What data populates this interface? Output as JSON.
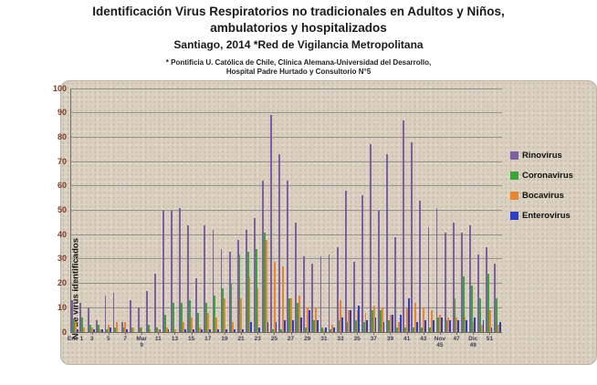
{
  "title": {
    "line1": "Identificación Virus Respiratorios no tradicionales en Adultos y Niños,",
    "line2": "ambulatorios y hospitalizados",
    "line3": "Santiago, 2014 *Red de Vigilancia Metropolitana",
    "footnote1": "* Pontificia U. Católica de Chile, Clínica Alemana-Universidad del Desarrollo,",
    "footnote2": "Hospital Padre Hurtado y Consultorio N°5"
  },
  "chart_data": {
    "type": "bar",
    "ylabel": "N° de virus identificados",
    "ylim": [
      0,
      100
    ],
    "ytick_step": 10,
    "grid": true,
    "legend_position": "right",
    "background": "#d9d0bf",
    "categories": [
      1,
      2,
      3,
      4,
      5,
      6,
      7,
      8,
      9,
      10,
      11,
      12,
      13,
      14,
      15,
      16,
      17,
      18,
      19,
      20,
      21,
      22,
      23,
      24,
      25,
      26,
      27,
      28,
      29,
      30,
      31,
      32,
      33,
      34,
      35,
      36,
      37,
      38,
      39,
      40,
      41,
      42,
      43,
      44,
      45,
      46,
      47,
      48,
      49,
      50,
      51,
      52
    ],
    "x_tick_labels": [
      {
        "week": 1,
        "text": "Ene 1"
      },
      {
        "week": 3,
        "text": "3"
      },
      {
        "week": 5,
        "text": "5"
      },
      {
        "week": 7,
        "text": "7"
      },
      {
        "week": 9,
        "text": "Mar|9"
      },
      {
        "week": 11,
        "text": "11"
      },
      {
        "week": 13,
        "text": "13"
      },
      {
        "week": 15,
        "text": "15"
      },
      {
        "week": 17,
        "text": "17"
      },
      {
        "week": 19,
        "text": "19"
      },
      {
        "week": 21,
        "text": "21"
      },
      {
        "week": 23,
        "text": "23"
      },
      {
        "week": 25,
        "text": "25"
      },
      {
        "week": 27,
        "text": "27"
      },
      {
        "week": 29,
        "text": "29"
      },
      {
        "week": 31,
        "text": "31"
      },
      {
        "week": 33,
        "text": "33"
      },
      {
        "week": 35,
        "text": "35"
      },
      {
        "week": 37,
        "text": "37"
      },
      {
        "week": 39,
        "text": "39"
      },
      {
        "week": 41,
        "text": "41"
      },
      {
        "week": 43,
        "text": "43"
      },
      {
        "week": 45,
        "text": "Nov|45"
      },
      {
        "week": 47,
        "text": "47"
      },
      {
        "week": 49,
        "text": "Dic|49"
      },
      {
        "week": 51,
        "text": "51"
      }
    ],
    "series": [
      {
        "name": "Rinovirus",
        "color": "#7d60a3",
        "values": [
          13,
          12,
          10,
          5,
          15,
          16,
          4,
          13,
          10,
          17,
          24,
          50,
          50,
          51,
          44,
          22,
          44,
          42,
          34,
          33,
          38,
          42,
          47,
          62,
          89,
          73,
          62,
          45,
          31,
          28,
          31,
          32,
          35,
          58,
          29,
          56,
          77,
          50,
          73,
          39,
          87,
          78,
          54,
          43,
          51,
          41,
          45,
          41,
          44,
          32,
          35,
          28
        ]
      },
      {
        "name": "Coronavirus",
        "color": "#3aa33a",
        "values": [
          5,
          6,
          3,
          3,
          1,
          2,
          2,
          2,
          2,
          3,
          2,
          7,
          12,
          12,
          13,
          8,
          12,
          15,
          18,
          20,
          32,
          33,
          34,
          41,
          1,
          1,
          14,
          12,
          2,
          5,
          2,
          1,
          5,
          4,
          5,
          4,
          9,
          9,
          5,
          2,
          2,
          2,
          2,
          2,
          6,
          5,
          14,
          23,
          19,
          14,
          24,
          14
        ]
      },
      {
        "name": "Bocavirus",
        "color": "#e8852f",
        "values": [
          4,
          2,
          2,
          1,
          3,
          4,
          4,
          2,
          2,
          1,
          1,
          2,
          1,
          4,
          6,
          2,
          8,
          6,
          14,
          4,
          14,
          23,
          18,
          38,
          29,
          27,
          14,
          15,
          10,
          10,
          1,
          3,
          13,
          9,
          9,
          8,
          11,
          10,
          7,
          4,
          10,
          12,
          10,
          9,
          7,
          6,
          6,
          6,
          4,
          3,
          9,
          3
        ]
      },
      {
        "name": "Enterovirus",
        "color": "#2c3ec6",
        "values": [
          1,
          0,
          1,
          1,
          2,
          0,
          1,
          0,
          0,
          0,
          1,
          1,
          0,
          1,
          1,
          1,
          1,
          1,
          1,
          1,
          1,
          4,
          2,
          4,
          4,
          5,
          5,
          6,
          9,
          5,
          2,
          2,
          6,
          9,
          11,
          5,
          6,
          4,
          7,
          7,
          14,
          4,
          5,
          5,
          6,
          5,
          5,
          5,
          6,
          5,
          2,
          4
        ]
      }
    ]
  }
}
